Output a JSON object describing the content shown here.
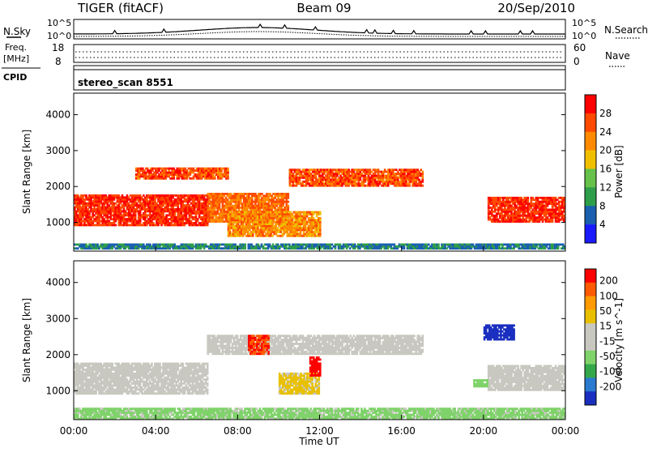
{
  "header": {
    "title": "TIGER (fitACF)",
    "beam": "Beam 09",
    "date": "20/Sep/2010"
  },
  "panels": {
    "nsky": {
      "label": "N.Sky",
      "left_ticks": [
        "10^5",
        "10^0"
      ],
      "right_ticks": [
        "10^5",
        "10^0"
      ],
      "right_label": "N.Search"
    },
    "freq": {
      "label_line1": "Freq.",
      "label_line2": "[MHz]",
      "left_ticks": [
        "18",
        "8"
      ],
      "right_ticks": [
        "60",
        "0"
      ],
      "right_label": "Nave"
    },
    "cpid": {
      "label": "CPID",
      "scan_name": "stereo_scan 8551"
    }
  },
  "time_axis": {
    "label": "Time UT",
    "ticks": [
      "00:00",
      "04:00",
      "08:00",
      "12:00",
      "16:00",
      "20:00",
      "00:00"
    ]
  },
  "colors": {
    "power_scale": [
      "#1a1aff",
      "#1a5fb0",
      "#2e9e4a",
      "#66c24a",
      "#f0c000",
      "#ff8a00",
      "#ff4a00",
      "#ff0000"
    ],
    "velocity_scale": [
      "#ff0000",
      "#ff5a00",
      "#ff9a00",
      "#e8c000",
      "#c8c8c0",
      "#c8c8c0",
      "#7fd36a",
      "#33a84a",
      "#2a7ad0",
      "#1a2fc0"
    ],
    "ground_scatter": "#c8c8c0"
  },
  "chart_data": [
    {
      "type": "heatmap",
      "title": "Power",
      "xlabel": "Time UT",
      "ylabel": "Slant Range [km]",
      "x_ticks": [
        "00:00",
        "04:00",
        "08:00",
        "12:00",
        "16:00",
        "20:00",
        "00:00"
      ],
      "xlim_hours": [
        0,
        24
      ],
      "y_ticks": [
        1000,
        2000,
        3000,
        4000
      ],
      "ylim": [
        200,
        4600
      ],
      "colorbar": {
        "label": "Power [dB]",
        "ticks": [
          4,
          8,
          12,
          16,
          20,
          24,
          28
        ],
        "range": [
          0,
          32
        ]
      },
      "regions": [
        {
          "t_start": 0.0,
          "t_end": 6.5,
          "r_low": 900,
          "r_high": 1750,
          "value": 28
        },
        {
          "t_start": 3.0,
          "t_end": 7.5,
          "r_low": 2200,
          "r_high": 2500,
          "value": 26
        },
        {
          "t_start": 6.5,
          "t_end": 10.5,
          "r_low": 1000,
          "r_high": 1800,
          "value": 24
        },
        {
          "t_start": 10.5,
          "t_end": 17.0,
          "r_low": 2000,
          "r_high": 2450,
          "value": 26
        },
        {
          "t_start": 20.2,
          "t_end": 24.0,
          "r_low": 1000,
          "r_high": 1700,
          "value": 28
        },
        {
          "t_start": 7.5,
          "t_end": 12.0,
          "r_low": 600,
          "r_high": 1300,
          "value": 22
        },
        {
          "t_start": 0.0,
          "t_end": 24.0,
          "r_low": 250,
          "r_high": 400,
          "value": 8
        }
      ]
    },
    {
      "type": "heatmap",
      "title": "Velocity",
      "xlabel": "Time UT",
      "ylabel": "Slant Range [km]",
      "x_ticks": [
        "00:00",
        "04:00",
        "08:00",
        "12:00",
        "16:00",
        "20:00",
        "00:00"
      ],
      "xlim_hours": [
        0,
        24
      ],
      "y_ticks": [
        1000,
        2000,
        3000,
        4000
      ],
      "ylim": [
        200,
        4600
      ],
      "colorbar": {
        "label": "Velocity [m s^-1]",
        "ticks": [
          200,
          100,
          50,
          15,
          -15,
          -50,
          -100,
          -200
        ],
        "range": [
          -250,
          250
        ]
      },
      "regions": [
        {
          "t_start": 0.0,
          "t_end": 6.5,
          "r_low": 900,
          "r_high": 1750,
          "value": 0
        },
        {
          "t_start": 6.5,
          "t_end": 17.0,
          "r_low": 2000,
          "r_high": 2500,
          "value": 0
        },
        {
          "t_start": 20.2,
          "t_end": 24.0,
          "r_low": 1000,
          "r_high": 1700,
          "value": 0
        },
        {
          "t_start": 8.5,
          "t_end": 9.5,
          "r_low": 2000,
          "r_high": 2500,
          "value": 200
        },
        {
          "t_start": 10.0,
          "t_end": 12.0,
          "r_low": 900,
          "r_high": 1500,
          "value": 60
        },
        {
          "t_start": 11.5,
          "t_end": 12.0,
          "r_low": 1400,
          "r_high": 1900,
          "value": 220
        },
        {
          "t_start": 19.5,
          "t_end": 20.2,
          "r_low": 1100,
          "r_high": 1300,
          "value": -80
        },
        {
          "t_start": 20.0,
          "t_end": 21.5,
          "r_low": 2400,
          "r_high": 2800,
          "value": -220
        },
        {
          "t_start": 0.0,
          "t_end": 24.0,
          "r_low": 200,
          "r_high": 500,
          "value": -60
        }
      ]
    }
  ]
}
